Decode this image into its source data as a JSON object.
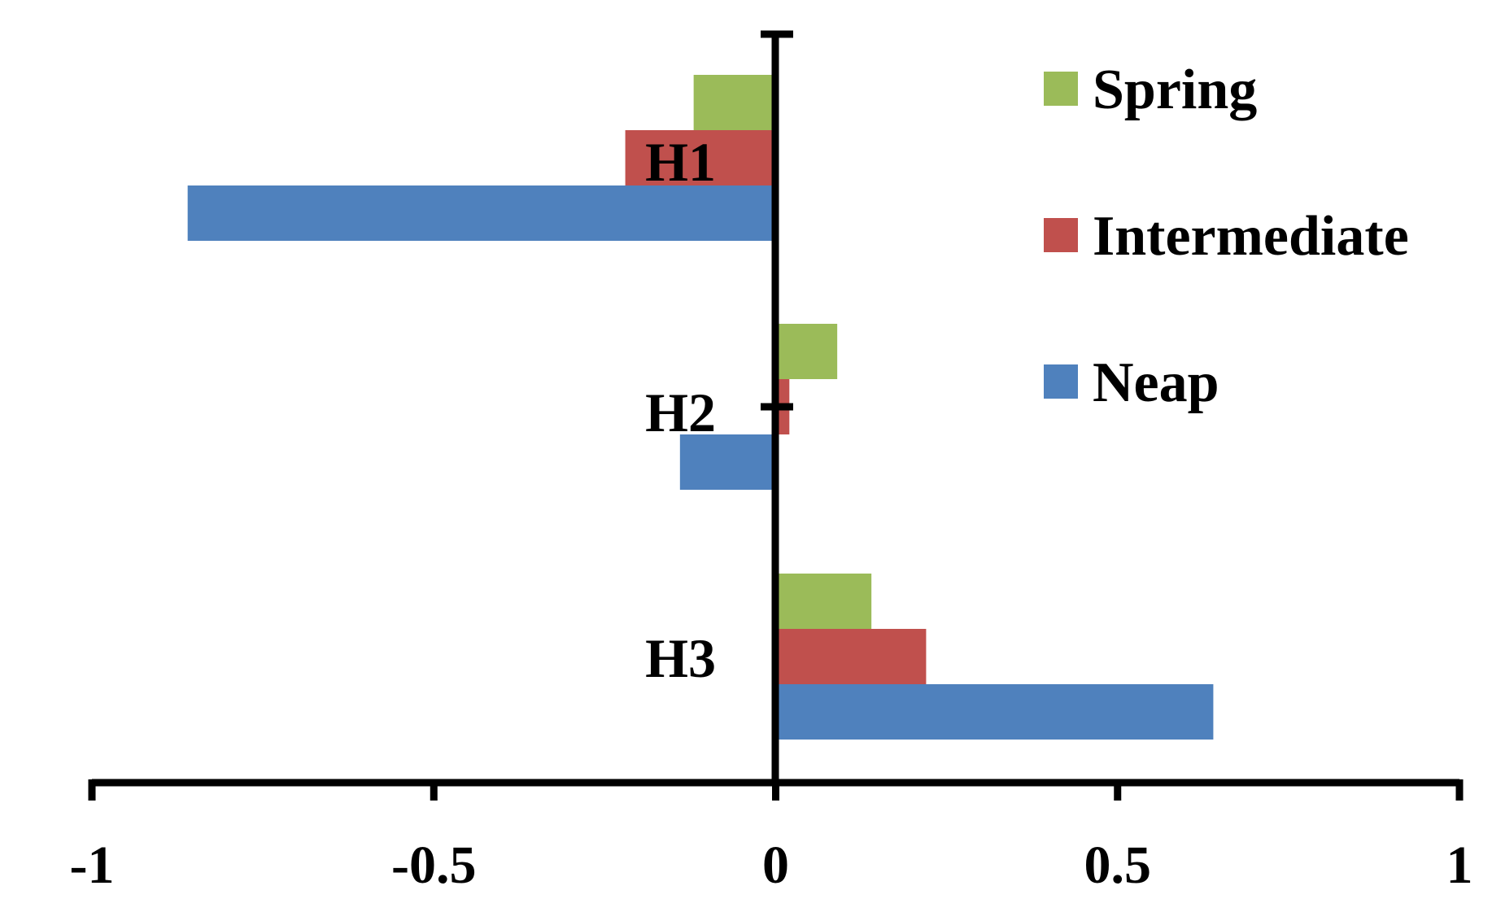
{
  "chart_data": {
    "type": "bar",
    "orientation": "horizontal",
    "title": "",
    "xlabel": "",
    "ylabel": "",
    "categories": [
      "H1",
      "H2",
      "H3"
    ],
    "series": [
      {
        "name": "Spring",
        "color": "#9BBB59",
        "values": [
          -0.12,
          0.09,
          0.14
        ]
      },
      {
        "name": "Intermediate",
        "color": "#C0504D",
        "values": [
          -0.22,
          0.02,
          0.22
        ]
      },
      {
        "name": "Neap",
        "color": "#4F81BD",
        "values": [
          -0.86,
          -0.14,
          0.64
        ]
      }
    ],
    "xlim": [
      -1,
      1
    ],
    "x_ticks": [
      -1,
      -0.5,
      0,
      0.5,
      1
    ],
    "x_tick_labels": [
      "-1",
      "-0.5",
      "0",
      "0.5",
      "1"
    ],
    "grid": false,
    "legend_position": "top-right",
    "axis_color": "#000000"
  }
}
